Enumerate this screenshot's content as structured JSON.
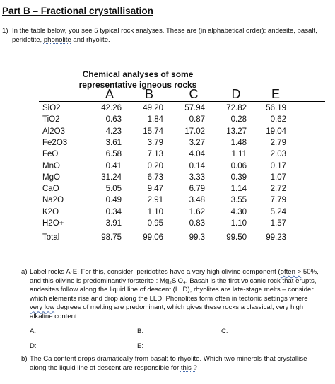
{
  "heading": "Part B – Fractional crystallisation",
  "q1": {
    "number": "1)",
    "text_before": "In the table below, you see 5 typical rock analyses. These are (in alphabetical order): andesite, basalt, peridotite, ",
    "underlined": "phonolite",
    "text_after": " and rhyolite."
  },
  "table": {
    "caption_line1": "Chemical analyses of some",
    "caption_line2": "representative igneous rocks",
    "columns": [
      "A",
      "B",
      "C",
      "D",
      "E"
    ],
    "rows": [
      {
        "label": "SiO2",
        "values": [
          "42.26",
          "49.20",
          "57.94",
          "72.82",
          "56.19"
        ]
      },
      {
        "label": "TiO2",
        "values": [
          "0.63",
          "1.84",
          "0.87",
          "0.28",
          "0.62"
        ]
      },
      {
        "label": "Al2O3",
        "values": [
          "4.23",
          "15.74",
          "17.02",
          "13.27",
          "19.04"
        ]
      },
      {
        "label": "Fe2O3",
        "values": [
          "3.61",
          "3.79",
          "3.27",
          "1.48",
          "2.79"
        ]
      },
      {
        "label": "FeO",
        "values": [
          "6.58",
          "7.13",
          "4.04",
          "1.11",
          "2.03"
        ]
      },
      {
        "label": "MnO",
        "values": [
          "0.41",
          "0.20",
          "0.14",
          "0.06",
          "0.17"
        ]
      },
      {
        "label": "MgO",
        "values": [
          "31.24",
          "6.73",
          "3.33",
          "0.39",
          "1.07"
        ]
      },
      {
        "label": "CaO",
        "values": [
          "5.05",
          "9.47",
          "6.79",
          "1.14",
          "2.72"
        ]
      },
      {
        "label": "Na2O",
        "values": [
          "0.49",
          "2.91",
          "3.48",
          "3.55",
          "7.79"
        ]
      },
      {
        "label": "K2O",
        "values": [
          "0.34",
          "1.10",
          "1.62",
          "4.30",
          "5.24"
        ]
      },
      {
        "label": "H2O+",
        "values": [
          "3.91",
          "0.95",
          "0.83",
          "1.10",
          "1.57"
        ]
      }
    ],
    "total": {
      "label": "Total",
      "values": [
        "98.75",
        "99.06",
        "99.3",
        "99.50",
        "99.23"
      ]
    }
  },
  "qa": {
    "number": "a)",
    "p1": "Label rocks A-E. For this, consider: peridotites have a very high olivine component (",
    "p1_u": "often  >",
    "p2": " 50%, and this olivine is predominantly forsterite : Mg₂SiO₄. Basalt is the first volcanic rock that erupts, andesites follow along the liquid line of descent (LLD), rhyolites are late-stage melts – consider which elements rise and drop along the LLD! Phonolites form often in tectonic settings where ",
    "p2_u": "very low",
    "p3": " degrees of melting are predominant, which gives these rocks a classical, very high alkaline content.",
    "answers": [
      "A:",
      "B:",
      "C:",
      "D:",
      "E:"
    ]
  },
  "qb": {
    "number": "b)",
    "text": "The Ca content drops dramatically from basalt to rhyolite. Which two minerals that crystallise along the liquid line of descent are responsible for ",
    "underlined": "this ?"
  }
}
